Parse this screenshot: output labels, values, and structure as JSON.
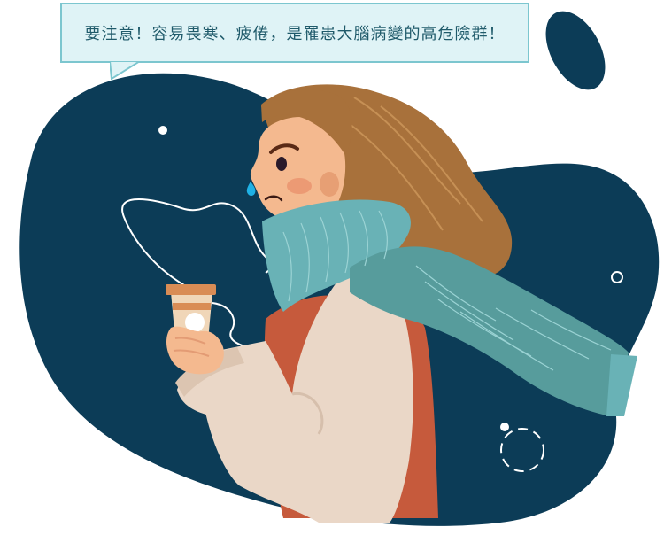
{
  "callout": {
    "text": "要注意！容易畏寒、疲倦，是罹患大腦病變的高危險群！"
  },
  "illustration": {
    "subject": "woman-holding-coffee",
    "colors": {
      "backdrop": "#0c3c57",
      "hair": "#a8713b",
      "skin": "#f4b98f",
      "scarf": "#5aa5a8",
      "coat": "#ead7c7",
      "sweater": "#c65a3c",
      "cup": "#f0d6b8",
      "tear": "#1fb1e5",
      "bubble_fill": "#dff3f6",
      "bubble_border": "#7cc6cf",
      "bubble_text": "#1f5a6a"
    }
  }
}
